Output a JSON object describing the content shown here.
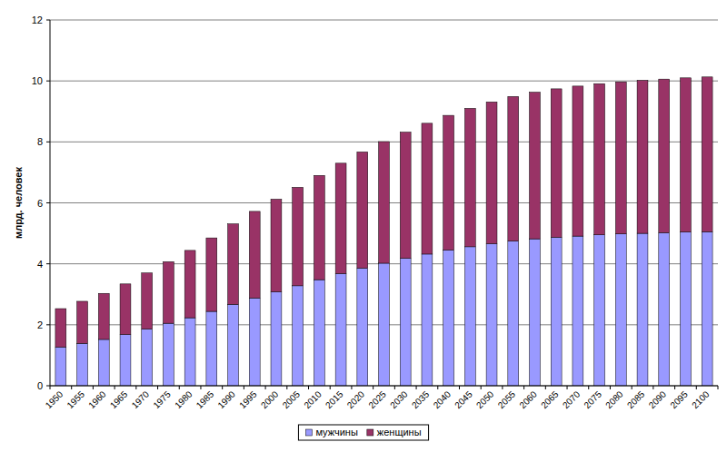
{
  "chart_data": {
    "type": "bar",
    "stacked": true,
    "grid": true,
    "legend": "bottom",
    "y_label": "млрд. человек",
    "categories": [
      "1950",
      "1955",
      "1960",
      "1965",
      "1970",
      "1975",
      "1980",
      "1985",
      "1990",
      "1995",
      "2000",
      "2005",
      "2010",
      "2015",
      "2020",
      "2025",
      "2030",
      "2035",
      "2040",
      "2045",
      "2050",
      "2055",
      "2060",
      "2065",
      "2070",
      "2075",
      "2080",
      "2085",
      "2090",
      "2095",
      "2100"
    ],
    "series": [
      {
        "name": "мужчины",
        "color": "#9999ff",
        "values": [
          1.27,
          1.39,
          1.52,
          1.68,
          1.86,
          2.05,
          2.23,
          2.44,
          2.67,
          2.88,
          3.08,
          3.28,
          3.48,
          3.68,
          3.86,
          4.02,
          4.18,
          4.32,
          4.45,
          4.56,
          4.66,
          4.75,
          4.82,
          4.87,
          4.91,
          4.95,
          4.98,
          5.0,
          5.02,
          5.04,
          5.05
        ]
      },
      {
        "name": "женщины",
        "color": "#993366",
        "values": [
          1.26,
          1.38,
          1.51,
          1.66,
          1.84,
          2.02,
          2.21,
          2.41,
          2.64,
          2.84,
          3.04,
          3.23,
          3.42,
          3.62,
          3.81,
          3.99,
          4.14,
          4.29,
          4.42,
          4.54,
          4.65,
          4.74,
          4.81,
          4.87,
          4.92,
          4.96,
          4.99,
          5.02,
          5.04,
          5.06,
          5.08
        ]
      }
    ],
    "ylim": [
      0,
      12
    ],
    "yticks": [
      0,
      2,
      4,
      6,
      8,
      10,
      12
    ]
  }
}
